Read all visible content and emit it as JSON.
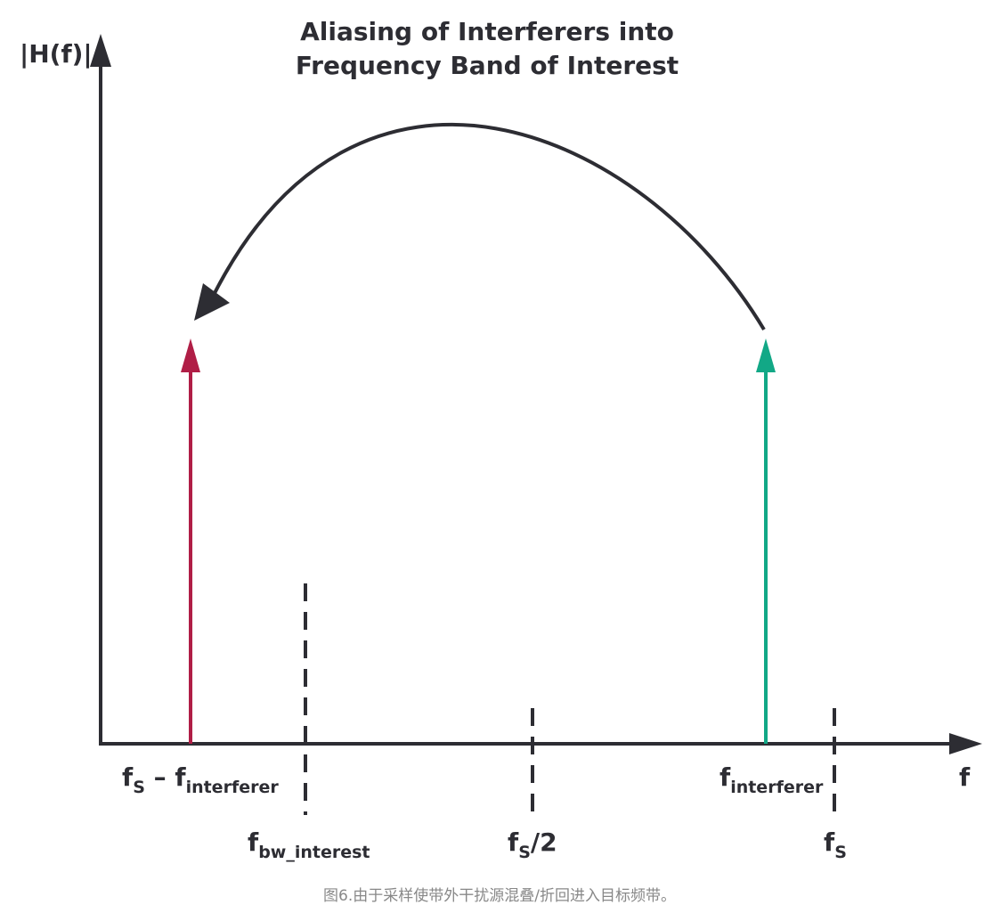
{
  "title": [
    "Aliasing of Interferers into",
    "Frequency Band of Interest"
  ],
  "y_axis_label": "|H(f)|",
  "x_axis_label": "f",
  "labels": [
    {
      "parts": [
        {
          "base": "f",
          "sub": "S"
        },
        {
          "base": " – f",
          "sub": "interferer"
        }
      ]
    },
    {
      "parts": [
        {
          "base": "f",
          "sub": "bw_interest"
        }
      ]
    },
    {
      "parts": [
        {
          "base": "f",
          "sub": "S"
        },
        {
          "base": "/2"
        }
      ]
    },
    {
      "parts": [
        {
          "base": "f",
          "sub": "interferer"
        }
      ]
    },
    {
      "parts": [
        {
          "base": "f",
          "sub": "S"
        }
      ]
    }
  ],
  "caption": "图6.由于采样使带外干扰源混叠/折回进入目标频带。"
}
